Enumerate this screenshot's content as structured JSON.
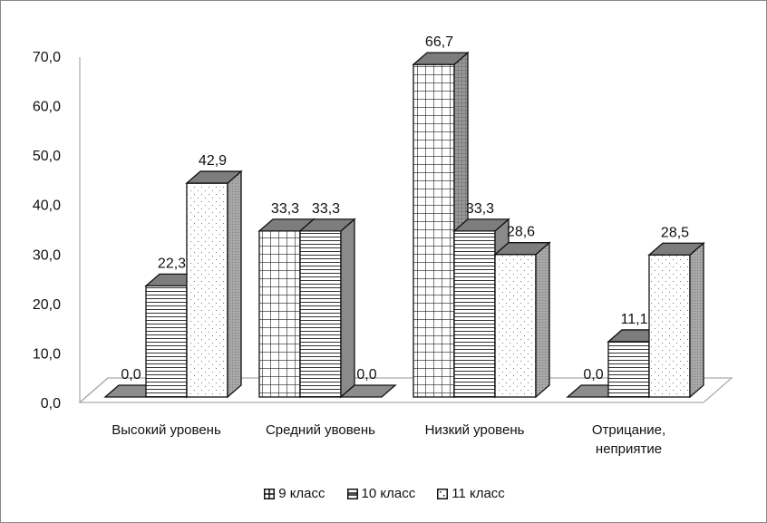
{
  "chart_data": {
    "type": "bar",
    "title": "",
    "xlabel": "",
    "ylabel": "",
    "ylim": [
      0,
      70
    ],
    "yticks": [
      "0,0",
      "10,0",
      "20,0",
      "30,0",
      "40,0",
      "50,0",
      "60,0",
      "70,0"
    ],
    "categories": [
      [
        "Высокий уровень"
      ],
      [
        "Средний увовень"
      ],
      [
        "Низкий уровень"
      ],
      [
        "Отрицание,",
        "неприятие"
      ]
    ],
    "series": [
      {
        "name": "9 класс",
        "values": [
          0.0,
          33.3,
          66.7,
          0.0
        ],
        "labels": [
          "0,0",
          "33,3",
          "66,7",
          "0,0"
        ],
        "pattern": "grid"
      },
      {
        "name": "10 класс",
        "values": [
          22.3,
          33.3,
          33.3,
          11.1
        ],
        "labels": [
          "22,3",
          "33,3",
          "33,3",
          "11,1"
        ],
        "pattern": "hlines"
      },
      {
        "name": "11 класс",
        "values": [
          42.9,
          0.0,
          28.6,
          28.5
        ],
        "labels": [
          "42,9",
          "0,0",
          "28,6",
          "28,5"
        ],
        "pattern": "dots"
      }
    ],
    "legend_position": "bottom",
    "grid": false
  }
}
